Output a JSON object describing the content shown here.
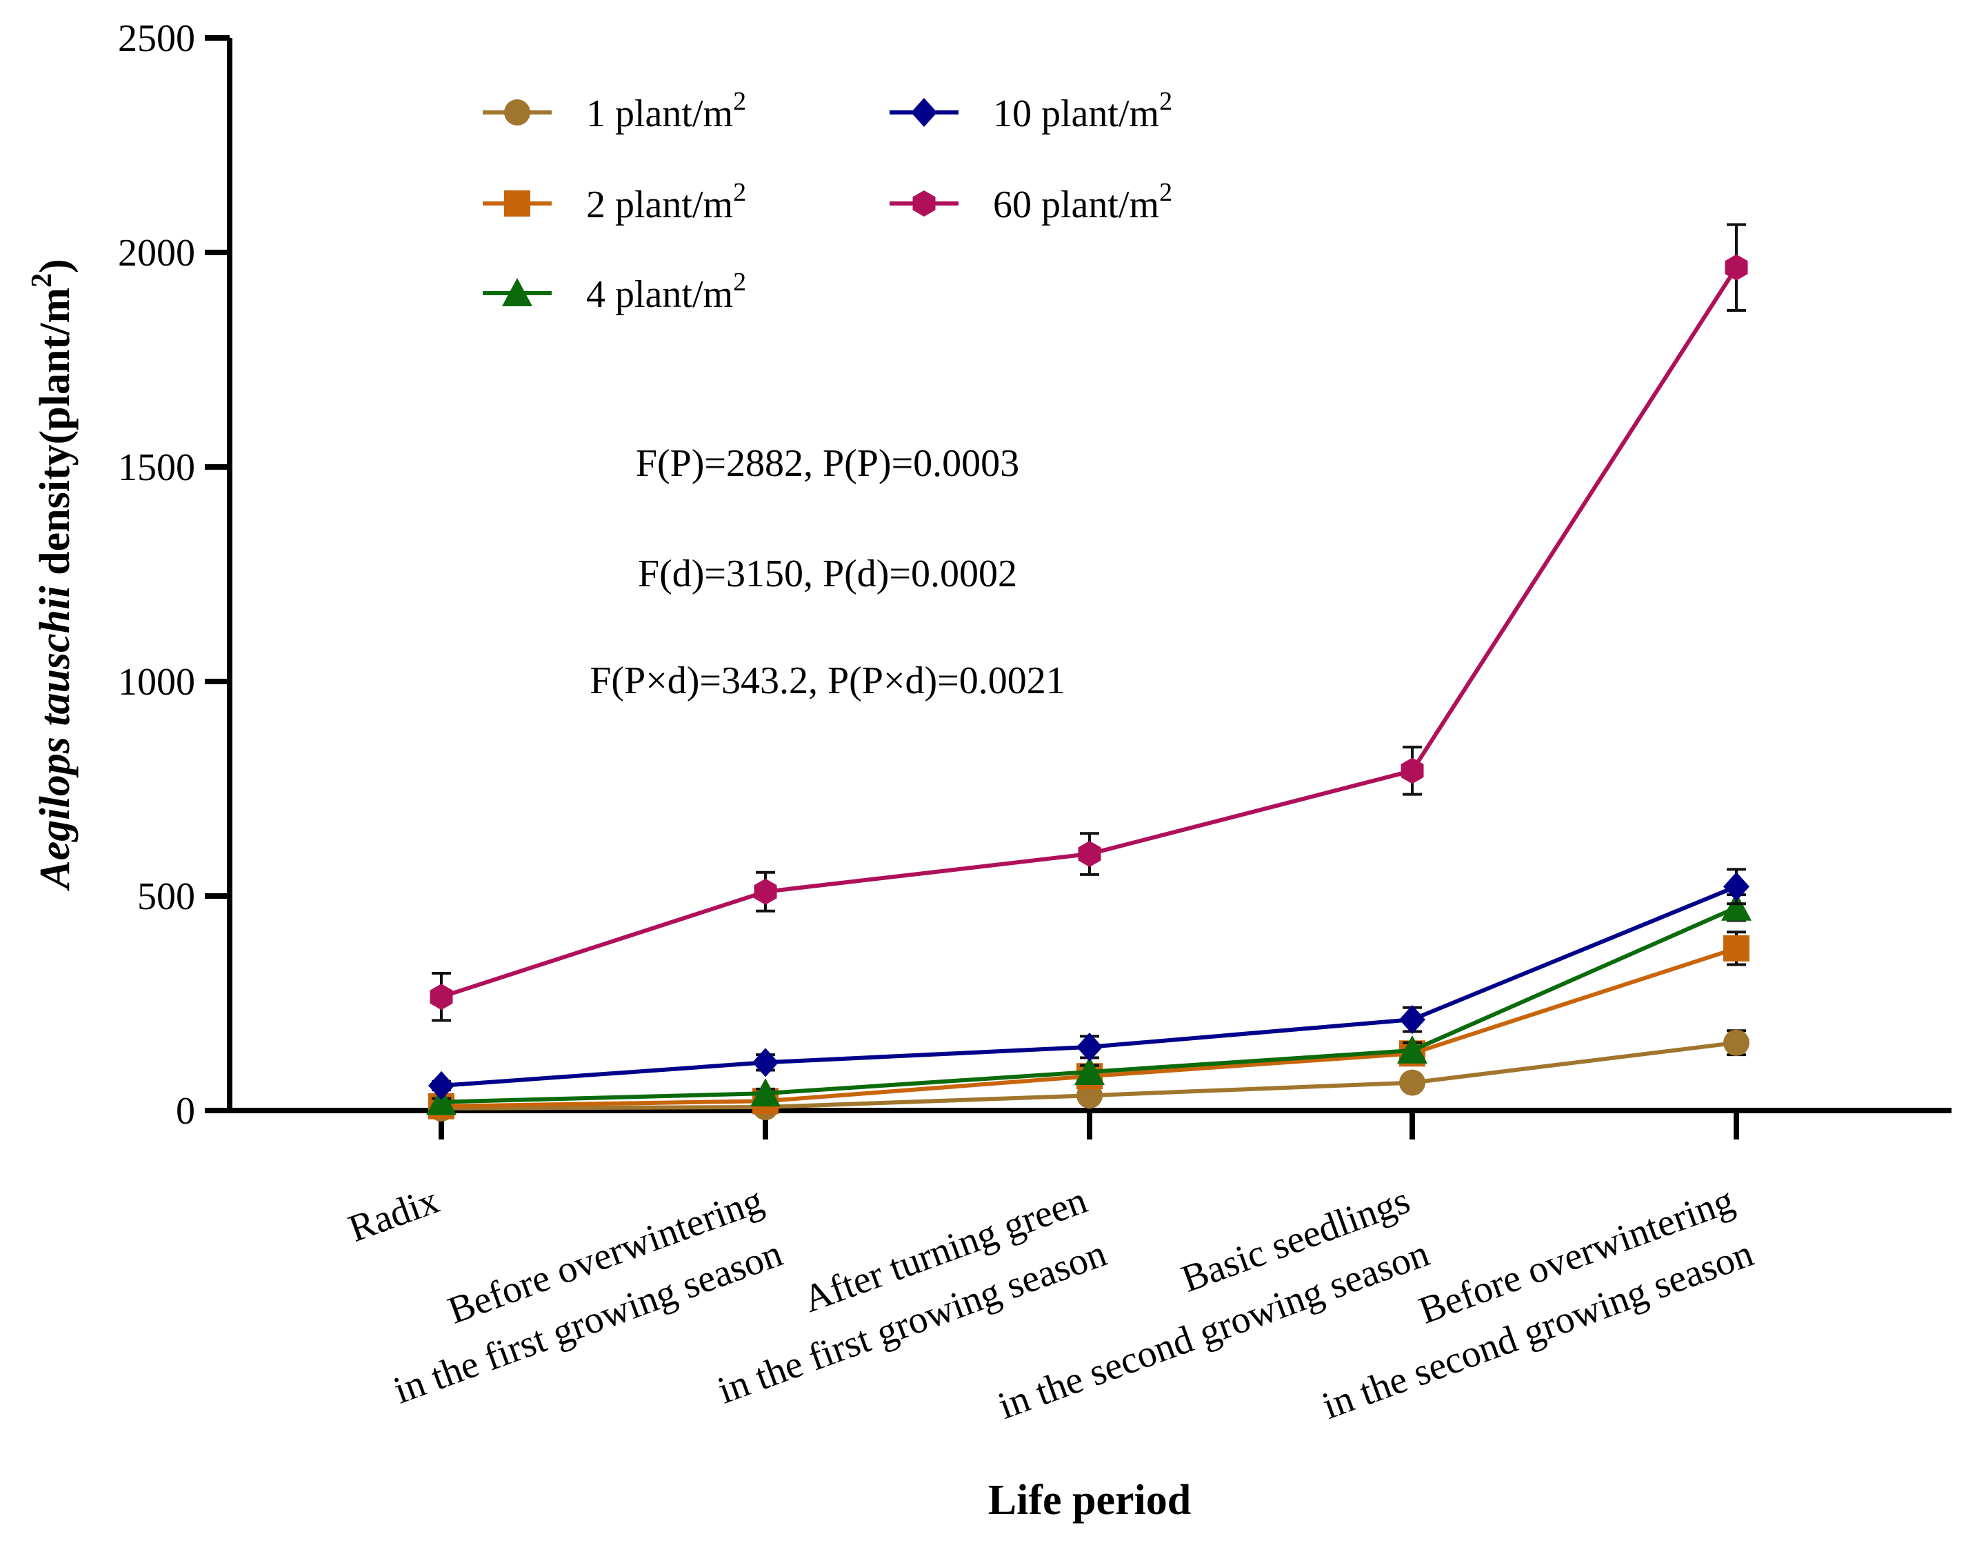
{
  "chart_data": {
    "type": "line",
    "title": "",
    "xlabel": "Life period",
    "ylabel": {
      "italic": "Aegilops tauschii",
      "rest": " density(plant/m",
      "sup": "2",
      "close": ")"
    },
    "ylim": [
      0,
      2500
    ],
    "yticks": [
      0,
      500,
      1000,
      1500,
      2000,
      2500
    ],
    "grid": false,
    "legend_position": "top-left",
    "categories": [
      "Radix",
      "Before overwintering in the first growing season",
      "After turning green in the first growing season",
      "Basic seedlings in the second growing season",
      "Before overwintering in the second growing season"
    ],
    "category_lines": [
      [
        "Radix"
      ],
      [
        "Before overwintering",
        "in the first growing season"
      ],
      [
        "After turning green",
        "in the first growing season"
      ],
      [
        "Basic seedlings",
        "in the second growing season"
      ],
      [
        "Before overwintering",
        "in the second growing season"
      ]
    ],
    "series": [
      {
        "name": "1 plant/m",
        "sup": "2",
        "marker": "circle",
        "color": "#A0762E",
        "values": [
          5,
          8,
          35,
          65,
          158
        ],
        "errors": [
          6,
          8,
          12,
          12,
          28
        ]
      },
      {
        "name": "2 plant/m",
        "sup": "2",
        "marker": "square",
        "color": "#C8650B",
        "values": [
          10,
          22,
          80,
          133,
          378
        ],
        "errors": [
          6,
          10,
          18,
          22,
          38
        ]
      },
      {
        "name": "4 plant/m",
        "sup": "2",
        "marker": "triangle",
        "color": "#0B6A0B",
        "values": [
          20,
          40,
          90,
          140,
          473
        ],
        "errors": [
          8,
          10,
          15,
          18,
          30
        ]
      },
      {
        "name": "10 plant/m",
        "sup": "2",
        "marker": "diamond",
        "color": "#00008B",
        "values": [
          58,
          112,
          148,
          212,
          522
        ],
        "errors": [
          10,
          18,
          25,
          28,
          40
        ]
      },
      {
        "name": "60 plant/m",
        "sup": "2",
        "marker": "hexagon",
        "color": "#B0105A",
        "values": [
          265,
          510,
          598,
          792,
          1965
        ],
        "errors": [
          55,
          45,
          48,
          55,
          100
        ]
      }
    ],
    "annotations": [
      "F(P)=2882, P(P)=0.0003",
      "F(d)=3150, P(d)=0.0002",
      "F(P×d)=343.2, P(P×d)=0.0021"
    ]
  }
}
